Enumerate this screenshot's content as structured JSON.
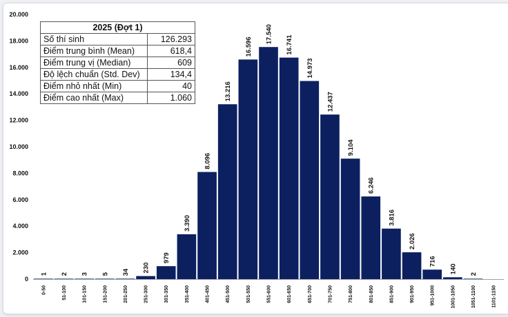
{
  "stats_table": {
    "title": "2025 (Đợt 1)",
    "rows": [
      {
        "label": "Số thí sinh",
        "value": "126.293"
      },
      {
        "label": "Điểm trung bình (Mean)",
        "value": "618,4"
      },
      {
        "label": "Điểm trung vị (Median)",
        "value": "609"
      },
      {
        "label": "Độ lệch chuẩn (Std. Dev)",
        "value": "134,4"
      },
      {
        "label": "Điểm nhỏ nhất (Min)",
        "value": "40"
      },
      {
        "label": "Điểm cao nhất (Max)",
        "value": "1.060"
      }
    ]
  },
  "chart_data": {
    "type": "bar",
    "title": "",
    "xlabel": "",
    "ylabel": "",
    "ylim": [
      0,
      20000
    ],
    "y_ticks": [
      "0",
      "2.000",
      "4.000",
      "6.000",
      "8.000",
      "10.000",
      "12.000",
      "14.000",
      "16.000",
      "18.000",
      "20.000"
    ],
    "categories": [
      "0-50",
      "51-100",
      "101-150",
      "151-200",
      "201-250",
      "251-300",
      "301-350",
      "351-400",
      "401-450",
      "451-500",
      "501-550",
      "551-600",
      "601-650",
      "651-700",
      "701-750",
      "751-800",
      "801-850",
      "851-900",
      "901-950",
      "951-1000",
      "1001-1050",
      "1051-1100",
      "1101-1150"
    ],
    "values": [
      1,
      2,
      3,
      5,
      34,
      230,
      979,
      3390,
      8096,
      13216,
      16596,
      17540,
      16741,
      14973,
      12437,
      9104,
      6246,
      3816,
      2026,
      716,
      140,
      2,
      null
    ],
    "value_labels": [
      "1",
      "2",
      "3",
      "5",
      "34",
      "230",
      "979",
      "3.390",
      "8.096",
      "13.216",
      "16.596",
      "17.540",
      "16.741",
      "14.973",
      "12.437",
      "9.104",
      "6.246",
      "3.816",
      "2.026",
      "716",
      "140",
      "2",
      ""
    ],
    "bar_color": "#0c2060",
    "grid": false,
    "legend": "none"
  }
}
